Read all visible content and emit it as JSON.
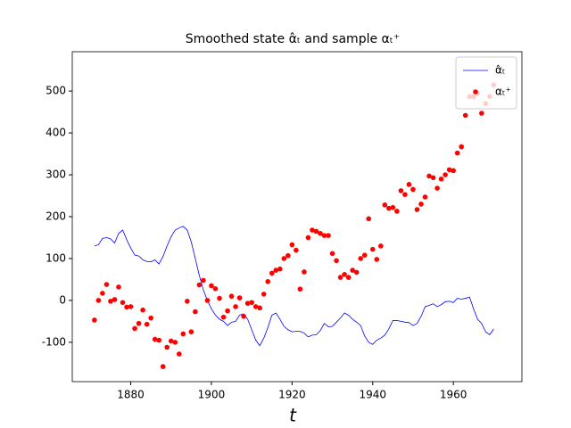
{
  "chart_data": {
    "type": "line",
    "title": "Smoothed state α̂ₜ and sample αₜ⁺",
    "x_label": "t",
    "x": [
      1871,
      1872,
      1873,
      1874,
      1875,
      1876,
      1877,
      1878,
      1879,
      1880,
      1881,
      1882,
      1883,
      1884,
      1885,
      1886,
      1887,
      1888,
      1889,
      1890,
      1891,
      1892,
      1893,
      1894,
      1895,
      1896,
      1897,
      1898,
      1899,
      1900,
      1901,
      1902,
      1903,
      1904,
      1905,
      1906,
      1907,
      1908,
      1909,
      1910,
      1911,
      1912,
      1913,
      1914,
      1915,
      1916,
      1917,
      1918,
      1919,
      1920,
      1921,
      1922,
      1923,
      1924,
      1925,
      1926,
      1927,
      1928,
      1929,
      1930,
      1931,
      1932,
      1933,
      1934,
      1935,
      1936,
      1937,
      1938,
      1939,
      1940,
      1941,
      1942,
      1943,
      1944,
      1945,
      1946,
      1947,
      1948,
      1949,
      1950,
      1951,
      1952,
      1953,
      1954,
      1955,
      1956,
      1957,
      1958,
      1959,
      1960,
      1961,
      1962,
      1963,
      1964,
      1965,
      1966,
      1967,
      1968,
      1969,
      1970
    ],
    "series": [
      {
        "name": "α̂ₜ",
        "type": "line",
        "color": "#0000ff",
        "values": [
          130,
          133,
          148,
          150,
          147,
          137,
          160,
          168,
          145,
          125,
          108,
          106,
          97,
          93,
          92,
          97,
          87,
          105,
          130,
          152,
          168,
          173,
          177,
          168,
          140,
          100,
          60,
          25,
          0,
          -20,
          -35,
          -45,
          -50,
          -60,
          -52,
          -50,
          -35,
          -32,
          -45,
          -70,
          -95,
          -108,
          -90,
          -65,
          -35,
          -30,
          -45,
          -62,
          -70,
          -75,
          -74,
          -74,
          -78,
          -87,
          -83,
          -82,
          -72,
          -55,
          -63,
          -62,
          -52,
          -42,
          -30,
          -35,
          -45,
          -52,
          -60,
          -85,
          -100,
          -105,
          -95,
          -90,
          -83,
          -68,
          -48,
          -48,
          -50,
          -52,
          -53,
          -60,
          -55,
          -38,
          -15,
          -12,
          -8,
          -15,
          -10,
          -3,
          -2,
          -5,
          5,
          3,
          5,
          8,
          -20,
          -45,
          -55,
          -75,
          -82,
          -68
        ]
      },
      {
        "name": "αₜ⁺",
        "type": "scatter",
        "color": "#ff0000",
        "values": [
          -47,
          0,
          17,
          38,
          -2,
          2,
          32,
          -5,
          -16,
          -15,
          -67,
          -55,
          -23,
          -57,
          -42,
          -93,
          -95,
          -158,
          -112,
          -97,
          -100,
          -128,
          -80,
          -2,
          -75,
          -27,
          37,
          48,
          0,
          35,
          28,
          5,
          -40,
          -25,
          10,
          -15,
          6,
          -38,
          -7,
          -5,
          -15,
          -18,
          15,
          45,
          65,
          72,
          75,
          100,
          107,
          133,
          120,
          27,
          68,
          150,
          168,
          165,
          160,
          155,
          155,
          112,
          95,
          55,
          62,
          55,
          72,
          67,
          100,
          108,
          195,
          122,
          98,
          130,
          228,
          220,
          222,
          213,
          262,
          253,
          277,
          265,
          217,
          230,
          247,
          297,
          293,
          268,
          290,
          300,
          312,
          310,
          352,
          367,
          442,
          487,
          487,
          495,
          447,
          470,
          487,
          515
        ]
      }
    ],
    "xlim": [
      1865.5,
      1977
    ],
    "ylim": [
      -194,
      594
    ],
    "xticks": [
      1880,
      1900,
      1920,
      1940,
      1960
    ],
    "yticks": [
      -100,
      0,
      100,
      200,
      300,
      400,
      500
    ],
    "legend": "upper right"
  }
}
